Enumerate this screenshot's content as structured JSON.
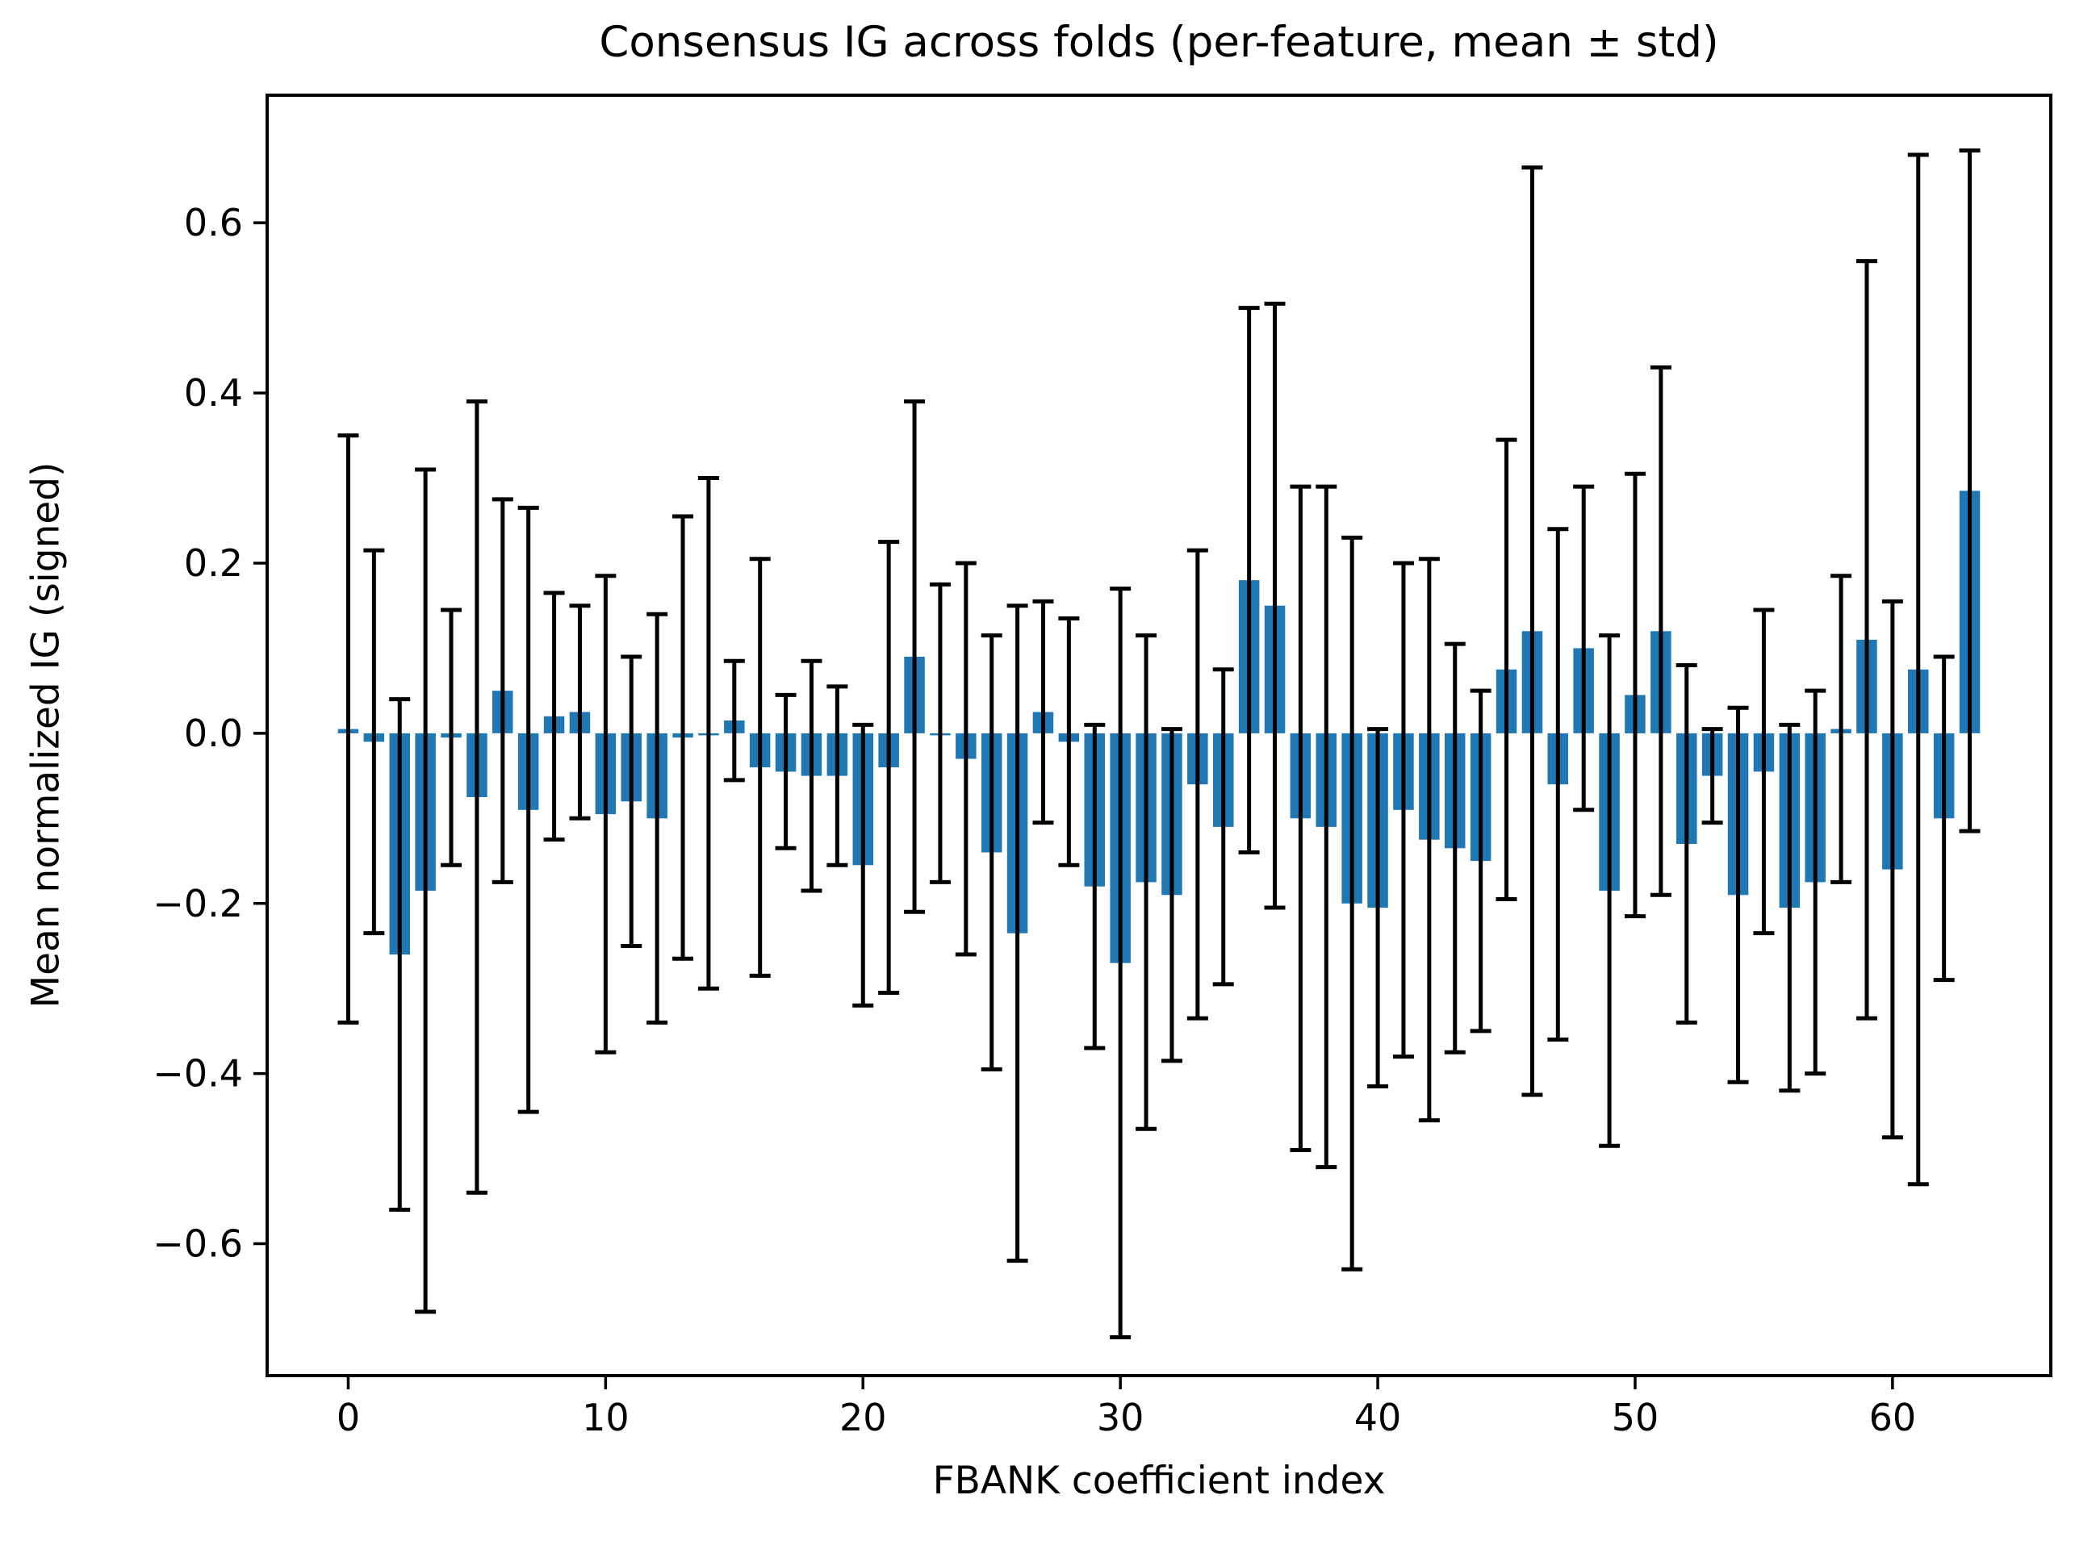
{
  "chart_data": {
    "type": "bar",
    "title": "Consensus IG across folds (per-feature, mean ± std)",
    "xlabel": "FBANK coefficient index",
    "ylabel": "Mean normalized IG (signed)",
    "x": [
      0,
      1,
      2,
      3,
      4,
      5,
      6,
      7,
      8,
      9,
      10,
      11,
      12,
      13,
      14,
      15,
      16,
      17,
      18,
      19,
      20,
      21,
      22,
      23,
      24,
      25,
      26,
      27,
      28,
      29,
      30,
      31,
      32,
      33,
      34,
      35,
      36,
      37,
      38,
      39,
      40,
      41,
      42,
      43,
      44,
      45,
      46,
      47,
      48,
      49,
      50,
      51,
      52,
      53,
      54,
      55,
      56,
      57,
      58,
      59,
      60,
      61,
      62,
      63
    ],
    "series": [
      {
        "name": "mean",
        "values": [
          0.005,
          -0.01,
          -0.26,
          -0.185,
          -0.005,
          -0.075,
          0.05,
          -0.09,
          0.02,
          0.025,
          -0.095,
          -0.08,
          -0.1,
          -0.005,
          0.0,
          0.015,
          -0.04,
          -0.045,
          -0.05,
          -0.05,
          -0.155,
          -0.04,
          0.09,
          0.0,
          -0.03,
          -0.14,
          -0.235,
          0.025,
          -0.01,
          -0.18,
          -0.27,
          -0.175,
          -0.19,
          -0.06,
          -0.11,
          0.18,
          0.15,
          -0.1,
          -0.11,
          -0.2,
          -0.205,
          -0.09,
          -0.125,
          -0.135,
          -0.15,
          0.075,
          0.12,
          -0.06,
          0.1,
          -0.185,
          0.045,
          0.12,
          -0.13,
          -0.05,
          -0.19,
          -0.045,
          -0.205,
          -0.175,
          0.005,
          0.11,
          -0.16,
          0.075,
          -0.1,
          0.285
        ]
      },
      {
        "name": "std",
        "values": [
          0.345,
          0.225,
          0.3,
          0.495,
          0.15,
          0.465,
          0.225,
          0.355,
          0.145,
          0.125,
          0.28,
          0.17,
          0.24,
          0.26,
          0.3,
          0.07,
          0.245,
          0.09,
          0.135,
          0.105,
          0.165,
          0.265,
          0.3,
          0.175,
          0.23,
          0.255,
          0.385,
          0.13,
          0.145,
          0.19,
          0.44,
          0.29,
          0.195,
          0.275,
          0.185,
          0.32,
          0.355,
          0.39,
          0.4,
          0.43,
          0.21,
          0.29,
          0.33,
          0.24,
          0.2,
          0.27,
          0.545,
          0.3,
          0.19,
          0.3,
          0.26,
          0.31,
          0.21,
          0.055,
          0.22,
          0.19,
          0.215,
          0.225,
          0.18,
          0.445,
          0.315,
          0.605,
          0.19,
          0.4
        ]
      }
    ],
    "bar_color": "#1f77b4",
    "error_color": "#000000",
    "xlim": [
      -3.15,
      66.15
    ],
    "ylim": [
      -0.755,
      0.75
    ],
    "xticks": [
      0,
      10,
      20,
      30,
      40,
      50,
      60
    ],
    "yticks": [
      0.6,
      0.4,
      0.2,
      0.0,
      -0.2,
      -0.4,
      -0.6
    ],
    "grid": false,
    "legend_position": "none",
    "bar_width_fraction": 0.8
  }
}
